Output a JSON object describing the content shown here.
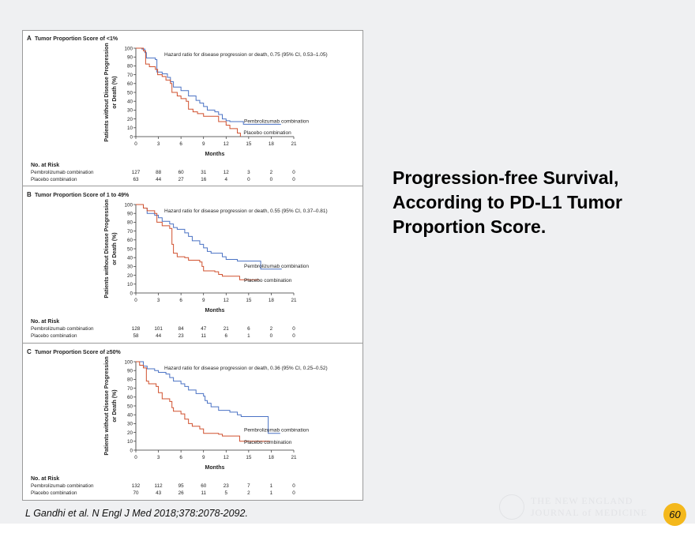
{
  "headline": [
    "Progression-free Survival,",
    "According to PD-L1 Tumor",
    "Proportion Score."
  ],
  "citation": "L Gandhi et al. N Engl J Med 2018;378:2078-2092.",
  "logo_text": [
    "THE NEW ENGLAND",
    "JOURNAL of MEDICINE"
  ],
  "page_number": "60",
  "colors": {
    "pembrolizumab": "#4a72c4",
    "placebo": "#d0502e",
    "badge": "#f4b81c"
  },
  "chart_data": [
    {
      "type": "line",
      "step": true,
      "panel_letter": "A",
      "title": "Tumor Proportion Score of <1%",
      "ylabel": [
        "Patients without Disease Progression",
        "or Death (%)"
      ],
      "xlabel": "Months",
      "xlim": [
        0,
        21
      ],
      "ylim": [
        0,
        100
      ],
      "xticks": [
        "0",
        "3",
        "6",
        "9",
        "12",
        "15",
        "18",
        "21"
      ],
      "yticks": [
        "0",
        "10",
        "20",
        "30",
        "40",
        "50",
        "60",
        "70",
        "80",
        "90",
        "100"
      ],
      "annotation": "Hazard ratio for disease progression or death, 0.75 (95% CI, 0.53–1.05)",
      "series": [
        {
          "name": "Pembrolizumab combination",
          "color": "#4a72c4",
          "points": [
            [
              0,
              100
            ],
            [
              0.8,
              99
            ],
            [
              1.2,
              95
            ],
            [
              1.4,
              89
            ],
            [
              2.6,
              87
            ],
            [
              2.8,
              73
            ],
            [
              3.5,
              71
            ],
            [
              4.2,
              67
            ],
            [
              4.6,
              62
            ],
            [
              5,
              56
            ],
            [
              6,
              52
            ],
            [
              7,
              46
            ],
            [
              8,
              41
            ],
            [
              8.5,
              38
            ],
            [
              9,
              34
            ],
            [
              9.5,
              30
            ],
            [
              10.5,
              28
            ],
            [
              11,
              25
            ],
            [
              11.5,
              20
            ],
            [
              12,
              18
            ],
            [
              12.5,
              17
            ],
            [
              14.3,
              14
            ],
            [
              19.3,
              14
            ]
          ]
        },
        {
          "name": "Placebo combination",
          "color": "#d0502e",
          "points": [
            [
              0,
              100
            ],
            [
              1,
              97
            ],
            [
              1.3,
              82
            ],
            [
              1.8,
              79
            ],
            [
              2.6,
              76
            ],
            [
              2.9,
              70
            ],
            [
              3.5,
              68
            ],
            [
              4,
              64
            ],
            [
              4.6,
              60
            ],
            [
              4.8,
              50
            ],
            [
              5.5,
              46
            ],
            [
              6,
              43
            ],
            [
              6.7,
              40
            ],
            [
              7,
              31
            ],
            [
              7.6,
              28
            ],
            [
              8.2,
              26
            ],
            [
              9,
              23
            ],
            [
              10.5,
              23
            ],
            [
              11,
              17
            ],
            [
              12,
              13
            ],
            [
              12.5,
              9
            ],
            [
              13.5,
              4
            ],
            [
              13.9,
              0
            ]
          ]
        }
      ],
      "risk_table": {
        "heading": "No. at Risk",
        "rows": [
          {
            "label": "Pembrolizumab combination",
            "values": [
              "127",
              "88",
              "60",
              "31",
              "12",
              "3",
              "2",
              "0"
            ]
          },
          {
            "label": "Placebo combination",
            "values": [
              "63",
              "44",
              "27",
              "16",
              "4",
              "0",
              "0",
              "0"
            ]
          }
        ]
      }
    },
    {
      "type": "line",
      "step": true,
      "panel_letter": "B",
      "title": "Tumor Proportion Score of 1 to 49%",
      "ylabel": [
        "Patients without Disease Progression",
        "or Death (%)"
      ],
      "xlabel": "Months",
      "xlim": [
        0,
        21
      ],
      "ylim": [
        0,
        100
      ],
      "xticks": [
        "0",
        "3",
        "6",
        "9",
        "12",
        "15",
        "18",
        "21"
      ],
      "yticks": [
        "0",
        "10",
        "20",
        "30",
        "40",
        "50",
        "60",
        "70",
        "80",
        "90",
        "100"
      ],
      "annotation": "Hazard ratio for disease progression or death, 0.55 (95% CI, 0.37–0.81)",
      "series": [
        {
          "name": "Pembrolizumab combination",
          "color": "#4a72c4",
          "points": [
            [
              0,
              100
            ],
            [
              1,
              96
            ],
            [
              1.5,
              90
            ],
            [
              2.5,
              88
            ],
            [
              3,
              85
            ],
            [
              3.5,
              81
            ],
            [
              4.5,
              78
            ],
            [
              5,
              74
            ],
            [
              5.5,
              72
            ],
            [
              6.5,
              68
            ],
            [
              7,
              64
            ],
            [
              7.5,
              59
            ],
            [
              8.5,
              55
            ],
            [
              9,
              51
            ],
            [
              9.5,
              47
            ],
            [
              10,
              45
            ],
            [
              11.5,
              41
            ],
            [
              12,
              38
            ],
            [
              13.5,
              36
            ],
            [
              16.6,
              36
            ],
            [
              16.6,
              27
            ],
            [
              19.4,
              27
            ]
          ]
        },
        {
          "name": "Placebo combination",
          "color": "#d0502e",
          "points": [
            [
              0,
              100
            ],
            [
              1,
              96
            ],
            [
              1.5,
              93
            ],
            [
              2.5,
              90
            ],
            [
              2.8,
              80
            ],
            [
              3.5,
              76
            ],
            [
              4.5,
              73
            ],
            [
              4.8,
              55
            ],
            [
              5,
              45
            ],
            [
              5.5,
              41
            ],
            [
              6.5,
              40
            ],
            [
              7,
              37
            ],
            [
              8.5,
              35
            ],
            [
              8.8,
              30
            ],
            [
              9,
              25
            ],
            [
              10.5,
              24
            ],
            [
              11,
              21
            ],
            [
              11.5,
              19
            ],
            [
              13.8,
              19
            ],
            [
              13.8,
              15
            ],
            [
              16.4,
              15
            ]
          ]
        }
      ],
      "risk_table": {
        "heading": "No. at Risk",
        "rows": [
          {
            "label": "Pembrolizumab combination",
            "values": [
              "128",
              "101",
              "84",
              "47",
              "21",
              "6",
              "2",
              "0"
            ]
          },
          {
            "label": "Placebo combination",
            "values": [
              "58",
              "44",
              "23",
              "11",
              "6",
              "1",
              "0",
              "0"
            ]
          }
        ]
      }
    },
    {
      "type": "line",
      "step": true,
      "panel_letter": "C",
      "title": "Tumor Proportion Score of ≥50%",
      "ylabel": [
        "Patients without Disease Progression",
        "or Death (%)"
      ],
      "xlabel": "Months",
      "xlim": [
        0,
        21
      ],
      "ylim": [
        0,
        100
      ],
      "xticks": [
        "0",
        "3",
        "6",
        "9",
        "12",
        "15",
        "18",
        "21"
      ],
      "yticks": [
        "0",
        "10",
        "20",
        "30",
        "40",
        "50",
        "60",
        "70",
        "80",
        "90",
        "100"
      ],
      "annotation": "Hazard ratio for disease progression or death, 0.36 (95% CI, 0.25–0.52)",
      "series": [
        {
          "name": "Pembrolizumab combination",
          "color": "#4a72c4",
          "points": [
            [
              0,
              100
            ],
            [
              1,
              95
            ],
            [
              1.5,
              92
            ],
            [
              2.5,
              90
            ],
            [
              3,
              88
            ],
            [
              4,
              86
            ],
            [
              4.5,
              82
            ],
            [
              5,
              78
            ],
            [
              6,
              75
            ],
            [
              6.5,
              72
            ],
            [
              7,
              68
            ],
            [
              8,
              64
            ],
            [
              9,
              61
            ],
            [
              9.2,
              56
            ],
            [
              9.5,
              53
            ],
            [
              10,
              49
            ],
            [
              11,
              45
            ],
            [
              12.5,
              43
            ],
            [
              13.5,
              40
            ],
            [
              14,
              38
            ],
            [
              17.6,
              38
            ],
            [
              17.6,
              19
            ],
            [
              19.2,
              19
            ]
          ]
        },
        {
          "name": "Placebo combination",
          "color": "#d0502e",
          "points": [
            [
              0,
              100
            ],
            [
              0.5,
              96
            ],
            [
              1,
              93
            ],
            [
              1.4,
              78
            ],
            [
              1.7,
              75
            ],
            [
              2.7,
              72
            ],
            [
              3,
              65
            ],
            [
              3.5,
              58
            ],
            [
              4.5,
              55
            ],
            [
              4.8,
              48
            ],
            [
              5,
              44
            ],
            [
              6,
              41
            ],
            [
              6.5,
              35
            ],
            [
              7,
              30
            ],
            [
              7.5,
              27
            ],
            [
              8.5,
              24
            ],
            [
              9,
              19
            ],
            [
              11,
              18
            ],
            [
              11.5,
              16
            ],
            [
              13.8,
              16
            ],
            [
              13.8,
              10
            ],
            [
              17.8,
              10
            ]
          ]
        }
      ],
      "risk_table": {
        "heading": "No. at Risk",
        "rows": [
          {
            "label": "Pembrolizumab combination",
            "values": [
              "132",
              "112",
              "95",
              "60",
              "23",
              "7",
              "1",
              "0"
            ]
          },
          {
            "label": "Placebo combination",
            "values": [
              "70",
              "43",
              "26",
              "11",
              "5",
              "2",
              "1",
              "0"
            ]
          }
        ]
      }
    }
  ]
}
